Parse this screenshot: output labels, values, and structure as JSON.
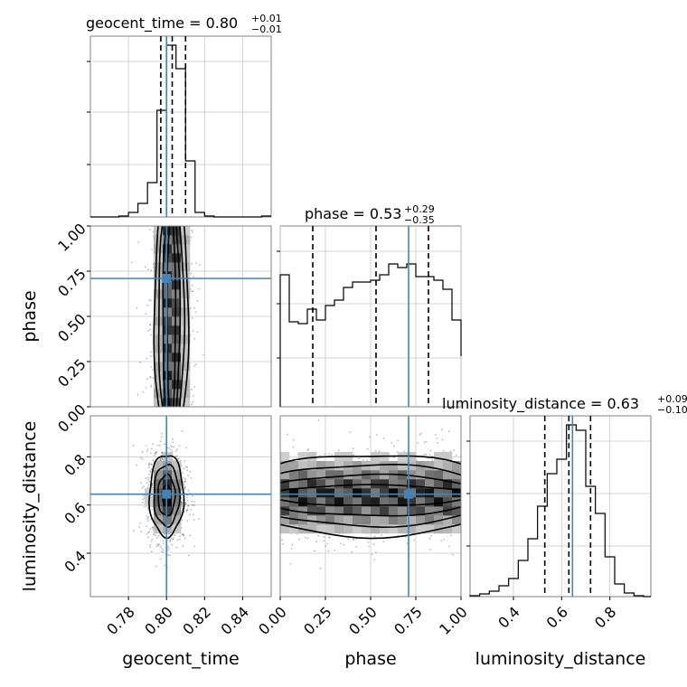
{
  "colors": {
    "truth": "#4682b4",
    "frame": "#808080",
    "grid": "#c8c8c8",
    "hist": "#000000"
  },
  "chart_data": {
    "type": "corner",
    "parameters": [
      "geocent_time",
      "phase",
      "luminosity_distance"
    ],
    "truths": {
      "geocent_time": 0.8,
      "phase": 0.71,
      "luminosity_distance": 0.645
    },
    "titles": [
      {
        "param": "geocent_time",
        "main": "geocent_time = 0.80",
        "plus": "+0.01",
        "minus": "−0.01"
      },
      {
        "param": "phase",
        "main": "phase = 0.53",
        "plus": "+0.29",
        "minus": "−0.35"
      },
      {
        "param": "luminosity_distance",
        "main": "luminosity_distance = 0.63",
        "plus": "+0.09",
        "minus": "−0.10"
      }
    ],
    "axis_labels": {
      "geocent_time": "geocent_time",
      "phase": "phase",
      "luminosity_distance": "luminosity_distance"
    },
    "ranges": {
      "geocent_time": [
        0.76,
        0.855
      ],
      "phase": [
        0.0,
        1.0
      ],
      "luminosity_distance": [
        0.22,
        0.97
      ]
    },
    "ticks": {
      "geocent_time": [
        "0.78",
        "0.80",
        "0.82",
        "0.84"
      ],
      "phase": [
        "0.00",
        "0.25",
        "0.50",
        "0.75",
        "1.00"
      ],
      "luminosity_distance_bottom": [
        "0.4",
        "0.6",
        "0.8"
      ],
      "luminosity_distance_left": [
        "0.4",
        "0.6",
        "0.8"
      ]
    },
    "quantile_lines": {
      "geocent_time": [
        0.797,
        0.803,
        0.81
      ],
      "phase": [
        0.18,
        0.53,
        0.82
      ],
      "luminosity_distance": [
        0.53,
        0.63,
        0.72
      ]
    },
    "histograms": {
      "geocent_time": {
        "edges": [
          0.76,
          0.765,
          0.77,
          0.775,
          0.78,
          0.785,
          0.79,
          0.795,
          0.8,
          0.805,
          0.81,
          0.815,
          0.82,
          0.825,
          0.83,
          0.835,
          0.84,
          0.845,
          0.85,
          0.855
        ],
        "counts": [
          0,
          0,
          0,
          0.005,
          0.025,
          0.075,
          0.19,
          0.59,
          0.95,
          0.82,
          0.31,
          0.025,
          0.005,
          0,
          0,
          0,
          0,
          0,
          0.005
        ]
      },
      "phase": {
        "edges": [
          0.0,
          0.05,
          0.1,
          0.15,
          0.2,
          0.25,
          0.3,
          0.35,
          0.4,
          0.45,
          0.5,
          0.55,
          0.6,
          0.65,
          0.7,
          0.75,
          0.8,
          0.85,
          0.9,
          0.95,
          1.0
        ],
        "counts": [
          0.73,
          0.47,
          0.46,
          0.54,
          0.48,
          0.56,
          0.59,
          0.66,
          0.69,
          0.69,
          0.7,
          0.73,
          0.79,
          0.77,
          0.79,
          0.72,
          0.72,
          0.7,
          0.65,
          0.48,
          0.28
        ]
      },
      "luminosity_distance": {
        "edges": [
          0.22,
          0.26,
          0.3,
          0.34,
          0.38,
          0.42,
          0.46,
          0.5,
          0.54,
          0.58,
          0.62,
          0.66,
          0.7,
          0.74,
          0.78,
          0.82,
          0.86,
          0.9,
          0.94,
          0.97
        ],
        "counts": [
          0.005,
          0.015,
          0.03,
          0.06,
          0.1,
          0.2,
          0.32,
          0.5,
          0.68,
          0.76,
          0.95,
          0.92,
          0.61,
          0.46,
          0.22,
          0.07,
          0.02,
          0.005,
          0
        ]
      }
    },
    "posterior_2d": {
      "time_phase": {
        "center": [
          0.8025,
          0.58
        ],
        "sigma": [
          0.0045,
          0.3
        ]
      },
      "time_distance": {
        "center": [
          0.8,
          0.64
        ],
        "sigma": [
          0.0045,
          0.085
        ]
      },
      "phase_distance": {
        "center": [
          0.53,
          0.64
        ],
        "sigma": [
          0.29,
          0.085
        ]
      }
    }
  }
}
